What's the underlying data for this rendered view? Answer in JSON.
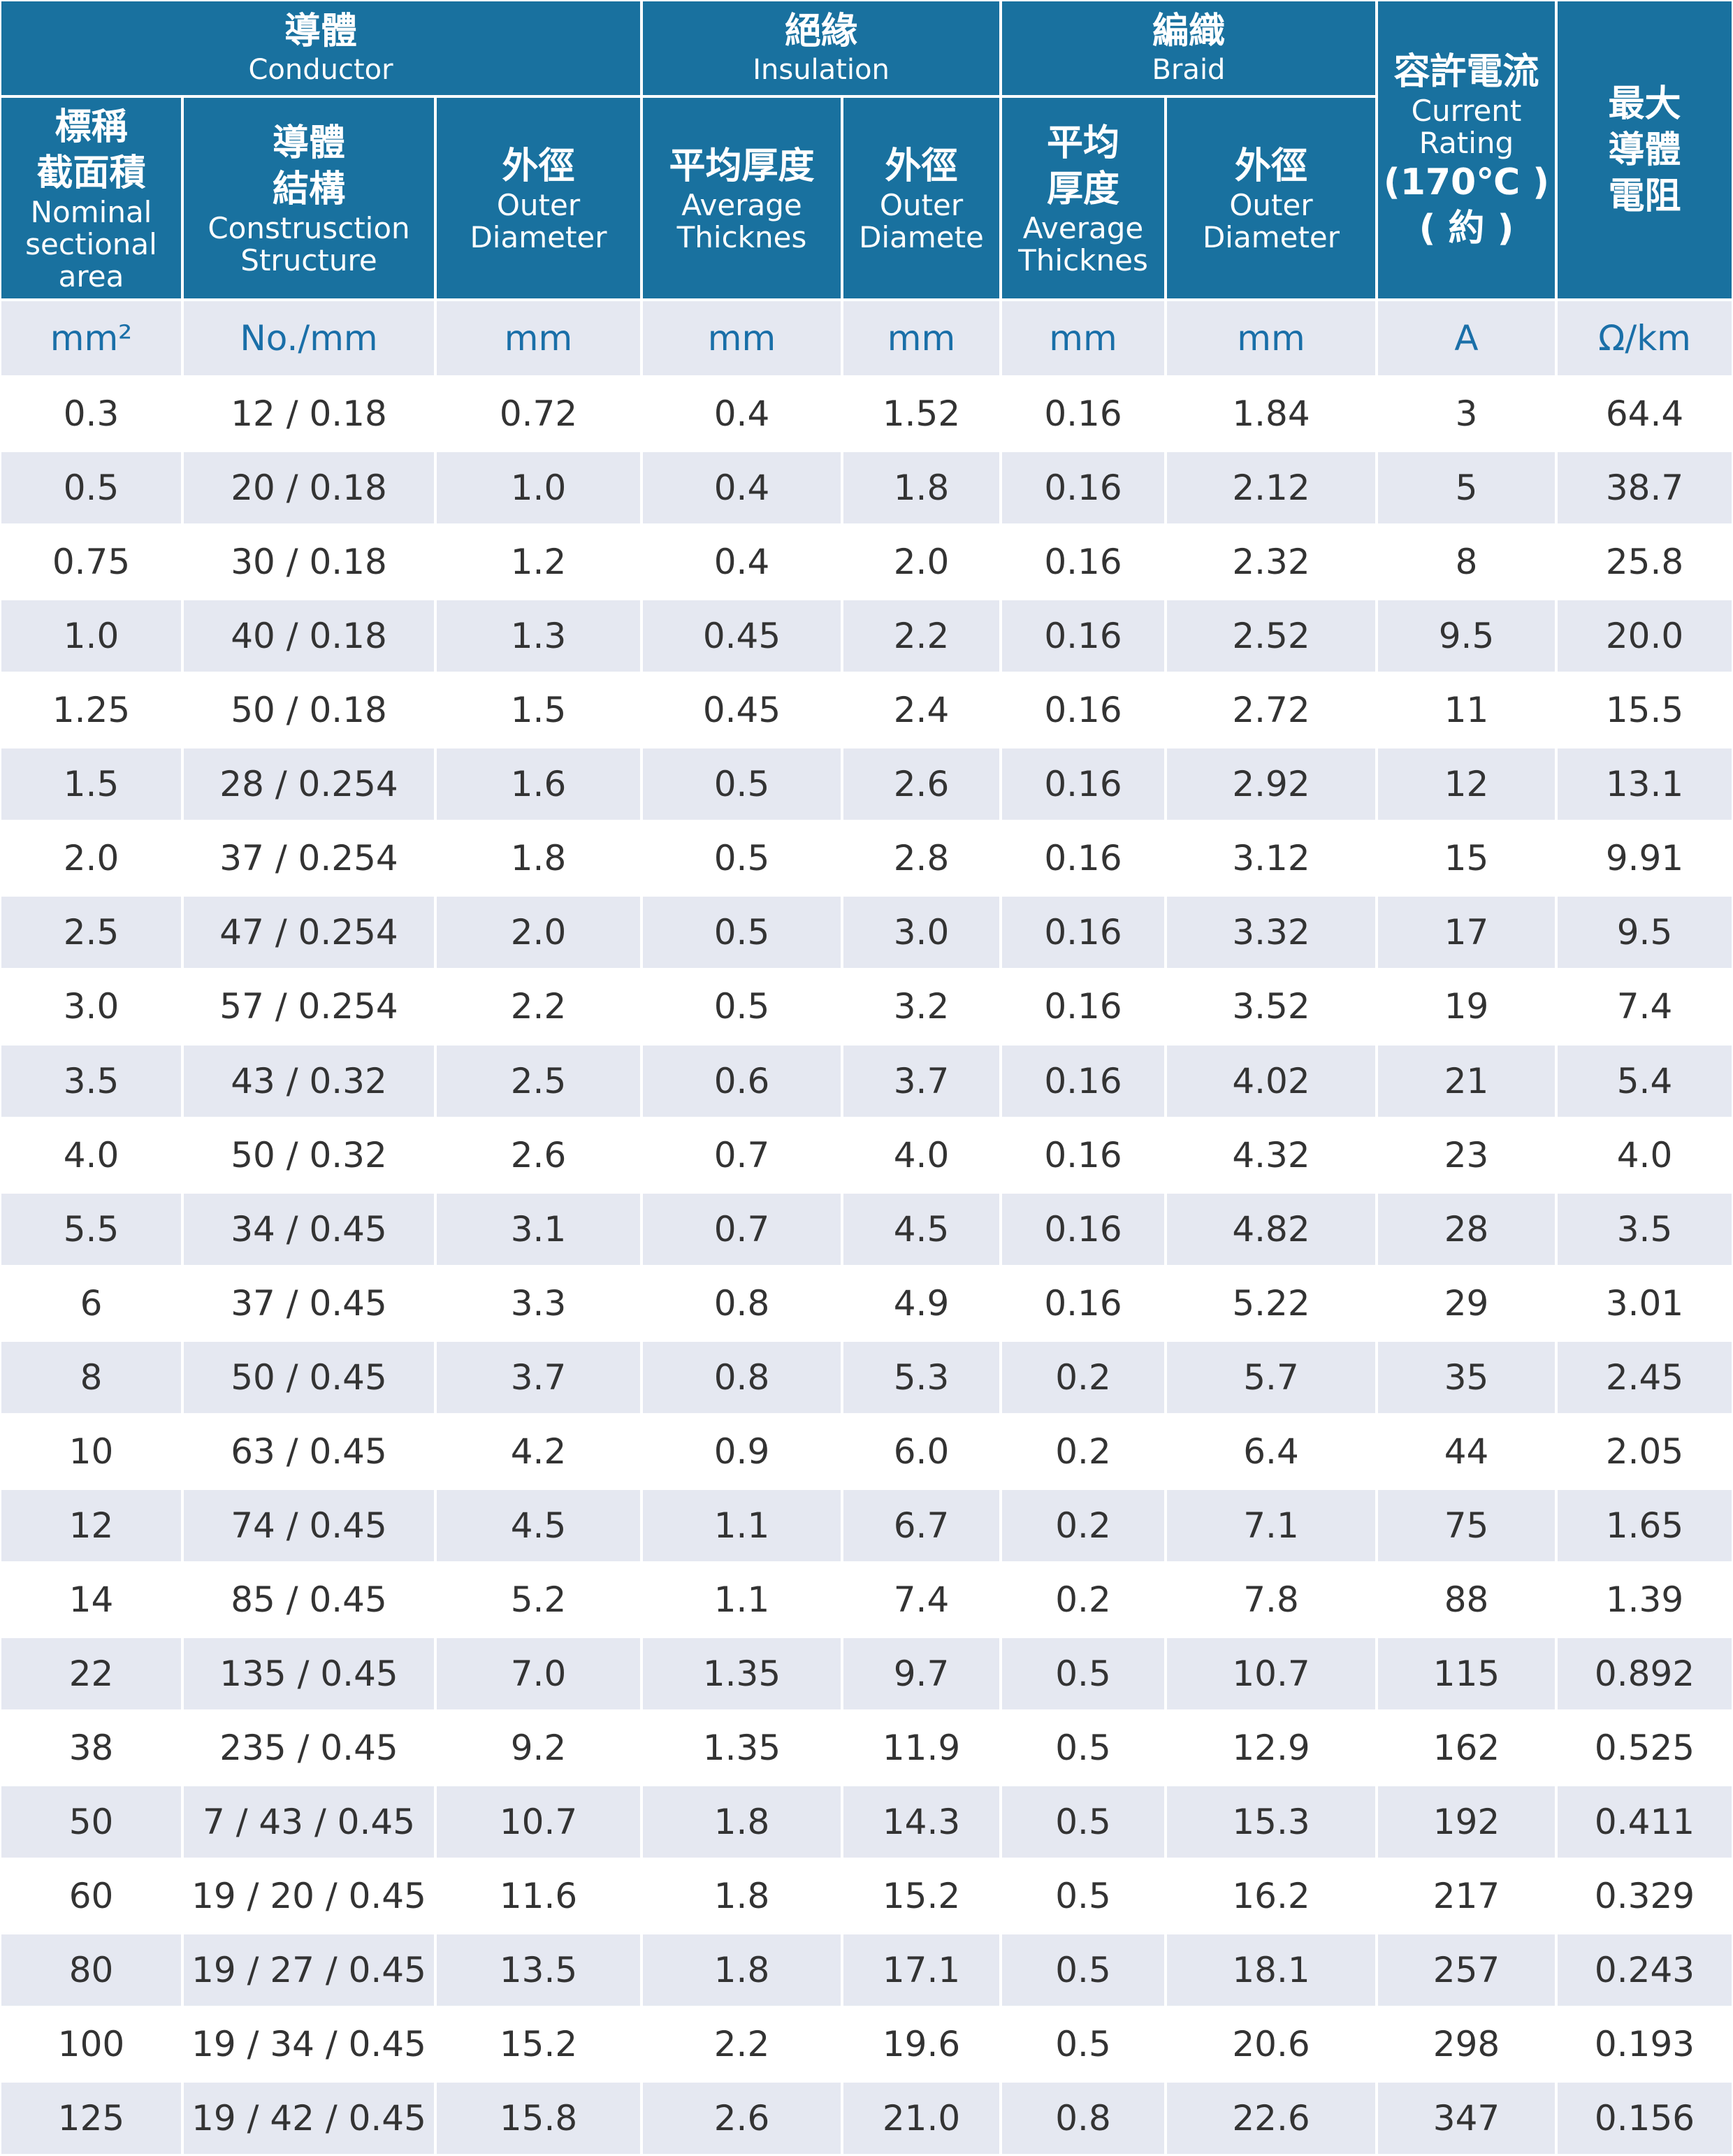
{
  "table": {
    "group_headers": [
      {
        "zh": "導體",
        "en": "Conductor"
      },
      {
        "zh": "絕緣",
        "en": "Insulation"
      },
      {
        "zh": "編織",
        "en": "Braid"
      }
    ],
    "column_headers": [
      {
        "lines": [
          {
            "zh": "標稱"
          },
          {
            "zh": "截面積"
          },
          {
            "en": "Nominal"
          },
          {
            "en": "sectional"
          },
          {
            "en": "area"
          }
        ]
      },
      {
        "lines": [
          {
            "zh": "導體"
          },
          {
            "zh": "結構"
          },
          {
            "en": "Construsction"
          },
          {
            "en": "Structure"
          }
        ]
      },
      {
        "lines": [
          {
            "zh": "外徑"
          },
          {
            "en": "Outer"
          },
          {
            "en": "Diameter"
          }
        ]
      },
      {
        "lines": [
          {
            "zh": "平均厚度"
          },
          {
            "en": "Average"
          },
          {
            "en": "Thicknes"
          }
        ]
      },
      {
        "lines": [
          {
            "zh": "外徑"
          },
          {
            "en": "Outer"
          },
          {
            "en": "Diamete"
          }
        ]
      },
      {
        "lines": [
          {
            "zh": "平均"
          },
          {
            "zh": "厚度"
          },
          {
            "en": "Average"
          },
          {
            "en": "Thicknes"
          }
        ]
      },
      {
        "lines": [
          {
            "zh": "外徑"
          },
          {
            "en": "Outer"
          },
          {
            "en": "Diameter"
          }
        ]
      },
      {
        "lines": [
          {
            "zh": "容許電流"
          },
          {
            "en": "Current"
          },
          {
            "en": "Rating"
          },
          {
            "zh": "(170℃ )"
          },
          {
            "zh": "( 約 )"
          }
        ]
      },
      {
        "lines": [
          {
            "zh": "最大"
          },
          {
            "zh": "導體"
          },
          {
            "zh": "電阻"
          }
        ]
      }
    ],
    "units": [
      "mm²",
      "No./mm",
      "mm",
      "mm",
      "mm",
      "mm",
      "mm",
      "A",
      "Ω/km"
    ],
    "rows": [
      [
        "0.3",
        "12 / 0.18",
        "0.72",
        "0.4",
        "1.52",
        "0.16",
        "1.84",
        "3",
        "64.4"
      ],
      [
        "0.5",
        "20 / 0.18",
        "1.0",
        "0.4",
        "1.8",
        "0.16",
        "2.12",
        "5",
        "38.7"
      ],
      [
        "0.75",
        "30 / 0.18",
        "1.2",
        "0.4",
        "2.0",
        "0.16",
        "2.32",
        "8",
        "25.8"
      ],
      [
        "1.0",
        "40 / 0.18",
        "1.3",
        "0.45",
        "2.2",
        "0.16",
        "2.52",
        "9.5",
        "20.0"
      ],
      [
        "1.25",
        "50 / 0.18",
        "1.5",
        "0.45",
        "2.4",
        "0.16",
        "2.72",
        "11",
        "15.5"
      ],
      [
        "1.5",
        "28 / 0.254",
        "1.6",
        "0.5",
        "2.6",
        "0.16",
        "2.92",
        "12",
        "13.1"
      ],
      [
        "2.0",
        "37 / 0.254",
        "1.8",
        "0.5",
        "2.8",
        "0.16",
        "3.12",
        "15",
        "9.91"
      ],
      [
        "2.5",
        "47 / 0.254",
        "2.0",
        "0.5",
        "3.0",
        "0.16",
        "3.32",
        "17",
        "9.5"
      ],
      [
        "3.0",
        "57 / 0.254",
        "2.2",
        "0.5",
        "3.2",
        "0.16",
        "3.52",
        "19",
        "7.4"
      ],
      [
        "3.5",
        "43 / 0.32",
        "2.5",
        "0.6",
        "3.7",
        "0.16",
        "4.02",
        "21",
        "5.4"
      ],
      [
        "4.0",
        "50 / 0.32",
        "2.6",
        "0.7",
        "4.0",
        "0.16",
        "4.32",
        "23",
        "4.0"
      ],
      [
        "5.5",
        "34 / 0.45",
        "3.1",
        "0.7",
        "4.5",
        "0.16",
        "4.82",
        "28",
        "3.5"
      ],
      [
        "6",
        "37 / 0.45",
        "3.3",
        "0.8",
        "4.9",
        "0.16",
        "5.22",
        "29",
        "3.01"
      ],
      [
        "8",
        "50 / 0.45",
        "3.7",
        "0.8",
        "5.3",
        "0.2",
        "5.7",
        "35",
        "2.45"
      ],
      [
        "10",
        "63 / 0.45",
        "4.2",
        "0.9",
        "6.0",
        "0.2",
        "6.4",
        "44",
        "2.05"
      ],
      [
        "12",
        "74 / 0.45",
        "4.5",
        "1.1",
        "6.7",
        "0.2",
        "7.1",
        "75",
        "1.65"
      ],
      [
        "14",
        "85 / 0.45",
        "5.2",
        "1.1",
        "7.4",
        "0.2",
        "7.8",
        "88",
        "1.39"
      ],
      [
        "22",
        "135 / 0.45",
        "7.0",
        "1.35",
        "9.7",
        "0.5",
        "10.7",
        "115",
        "0.892"
      ],
      [
        "38",
        "235 / 0.45",
        "9.2",
        "1.35",
        "11.9",
        "0.5",
        "12.9",
        "162",
        "0.525"
      ],
      [
        "50",
        "7 / 43 / 0.45",
        "10.7",
        "1.8",
        "14.3",
        "0.5",
        "15.3",
        "192",
        "0.411"
      ],
      [
        "60",
        "19 / 20 / 0.45",
        "11.6",
        "1.8",
        "15.2",
        "0.5",
        "16.2",
        "217",
        "0.329"
      ],
      [
        "80",
        "19 / 27 / 0.45",
        "13.5",
        "1.8",
        "17.1",
        "0.5",
        "18.1",
        "257",
        "0.243"
      ],
      [
        "100",
        "19 / 34 / 0.45",
        "15.2",
        "2.2",
        "19.6",
        "0.5",
        "20.6",
        "298",
        "0.193"
      ],
      [
        "125",
        "19 / 42 / 0.45",
        "15.8",
        "2.6",
        "21.0",
        "0.8",
        "22.6",
        "347",
        "0.156"
      ]
    ]
  }
}
